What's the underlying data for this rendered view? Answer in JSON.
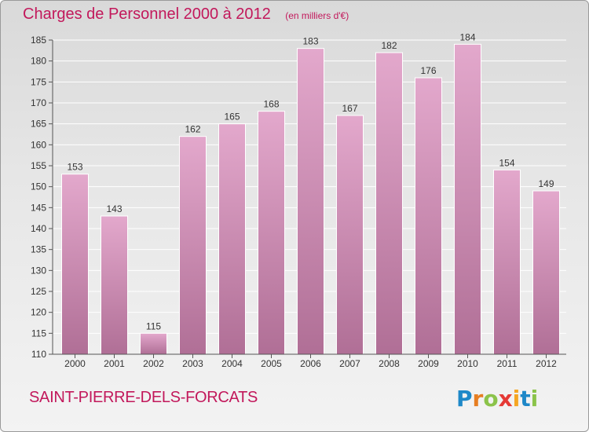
{
  "header": {
    "title": "Charges de Personnel 2000 à 2012",
    "unit": "(en milliers d'€)"
  },
  "commune": "SAINT-PIERRE-DELS-FORCATS",
  "logo": {
    "letters": [
      "P",
      "r",
      "o",
      "x",
      "i",
      "t",
      "i"
    ],
    "colors": [
      "#1e88c8",
      "#e67e22",
      "#8bc34a",
      "#e53935",
      "#f5a623",
      "#1e88c8",
      "#8bc34a"
    ]
  },
  "colors": {
    "title": "#c2185b",
    "bar_top": "#e3a8cc",
    "bar_bottom": "#b06f96"
  },
  "chart_data": {
    "type": "bar",
    "categories": [
      "2000",
      "2001",
      "2002",
      "2003",
      "2004",
      "2005",
      "2006",
      "2007",
      "2008",
      "2009",
      "2010",
      "2011",
      "2012"
    ],
    "values": [
      153,
      143,
      115,
      162,
      165,
      168,
      183,
      167,
      182,
      176,
      184,
      154,
      149
    ],
    "ylim": [
      110,
      185
    ],
    "yticks": [
      110,
      115,
      120,
      125,
      130,
      135,
      140,
      145,
      150,
      155,
      160,
      165,
      170,
      175,
      180,
      185
    ],
    "grid": true
  }
}
